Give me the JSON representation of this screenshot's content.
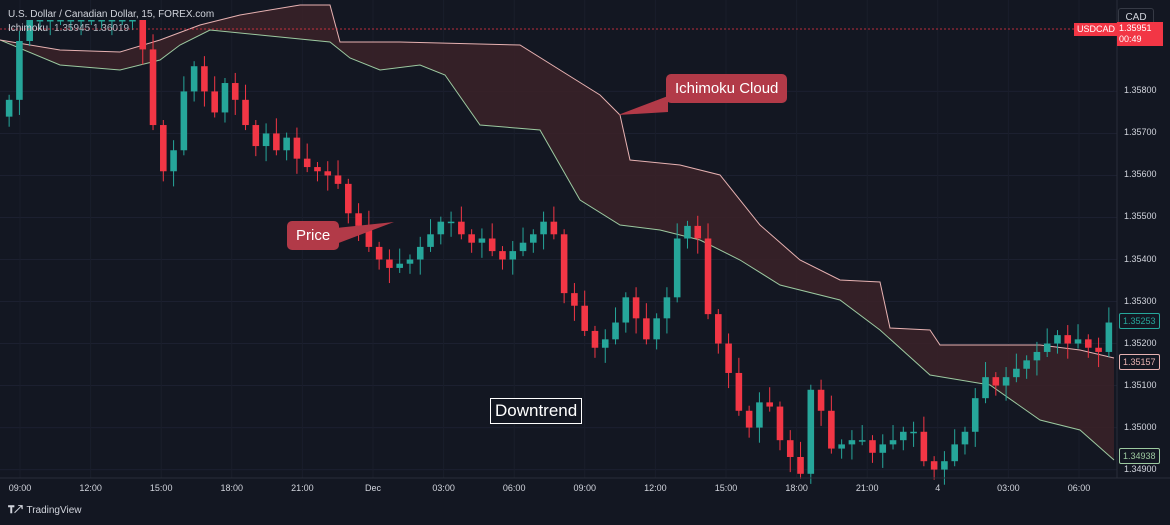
{
  "header": {
    "title": "U.S. Dollar / Canadian Dollar, 15, FOREX.com",
    "indicator": "Ichimoku",
    "indicator_values": "1.35945  1.36019"
  },
  "currency_button": "CAD",
  "symbol_tag": "USDCAD",
  "price_tag": "1.35951",
  "price_timer": "00:49",
  "badges": {
    "top": "1.35253",
    "mid": "1.35157",
    "low": "1.34938"
  },
  "colors": {
    "up": "#26a69a",
    "down": "#f23645",
    "cloud": "#3b2228",
    "spanA": "#e7b2b2",
    "spanB": "#9cc9a0",
    "callout": "#b23a48"
  },
  "annotations": {
    "cloud": "Ichimoku Cloud",
    "price": "Price",
    "trend": "Downtrend"
  },
  "footer": {
    "brand": "TradingView"
  },
  "chart_data": {
    "type": "candlestick",
    "yticks": [
      "1.35800",
      "1.35700",
      "1.35600",
      "1.35500",
      "1.35400",
      "1.35300",
      "1.35200",
      "1.35100",
      "1.35000",
      "1.34900"
    ],
    "ylim": [
      1.3488,
      1.3597
    ],
    "xticks": [
      "09:00",
      "12:00",
      "15:00",
      "18:00",
      "21:00",
      "Dec",
      "03:00",
      "06:00",
      "09:00",
      "12:00",
      "15:00",
      "18:00",
      "21:00",
      "4",
      "03:00",
      "06:00"
    ],
    "closes": [
      1.3578,
      1.3592,
      1.3597,
      1.3597,
      1.3597,
      1.3597,
      1.3597,
      1.3597,
      1.3597,
      1.3597,
      1.3597,
      1.3597,
      1.3597,
      1.359,
      1.3572,
      1.3561,
      1.3566,
      1.358,
      1.3586,
      1.358,
      1.3575,
      1.3582,
      1.3578,
      1.3572,
      1.3567,
      1.357,
      1.3566,
      1.3569,
      1.3564,
      1.3562,
      1.3561,
      1.356,
      1.3558,
      1.3551,
      1.3548,
      1.3543,
      1.354,
      1.3538,
      1.3539,
      1.354,
      1.3543,
      1.3546,
      1.3549,
      1.3549,
      1.3546,
      1.3544,
      1.3545,
      1.3542,
      1.354,
      1.3542,
      1.3544,
      1.3546,
      1.3549,
      1.3546,
      1.3532,
      1.3529,
      1.3523,
      1.3519,
      1.3521,
      1.3525,
      1.3531,
      1.3526,
      1.3521,
      1.3526,
      1.3531,
      1.3545,
      1.3548,
      1.3545,
      1.3527,
      1.352,
      1.3513,
      1.3504,
      1.35,
      1.3506,
      1.3505,
      1.3497,
      1.3493,
      1.3489,
      1.3509,
      1.3504,
      1.3495,
      1.3496,
      1.3497,
      1.3497,
      1.3494,
      1.3496,
      1.3497,
      1.3499,
      1.3499,
      1.3492,
      1.349,
      1.3492,
      1.3496,
      1.3499,
      1.3507,
      1.3512,
      1.351,
      1.3512,
      1.3514,
      1.3516,
      1.3518,
      1.352,
      1.3522,
      1.352,
      1.3521,
      1.3519,
      1.3518,
      1.3525
    ]
  }
}
